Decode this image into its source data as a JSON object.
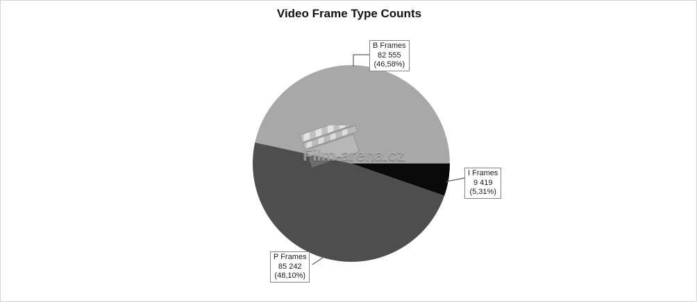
{
  "title": "Video Frame Type Counts",
  "watermark": {
    "text": "Film-arena.cz",
    "icon": "clapperboard-icon"
  },
  "chart_data": {
    "type": "pie",
    "title": "Video Frame Type Counts",
    "legend_position": "callouts",
    "layout": {
      "center": [
        505,
        235
      ],
      "radius": 142,
      "start_angle_deg": 192.3,
      "clockwise": true
    },
    "slices": [
      {
        "label": "B Frames",
        "count_text": "82 555",
        "percent_text": "(46,58%)",
        "value": 82555,
        "pct": 46.58,
        "color": "#a8a8a8"
      },
      {
        "label": "I Frames",
        "count_text": "9 419",
        "percent_text": "(5,31%)",
        "value": 9419,
        "pct": 5.31,
        "color": "#0a0a0a"
      },
      {
        "label": "P Frames",
        "count_text": "85 242",
        "percent_text": "(48,10%)",
        "value": 85242,
        "pct": 48.1,
        "color": "#4e4e4e"
      }
    ],
    "connector_color": "#5a5a5a",
    "background": "#ffffff"
  }
}
